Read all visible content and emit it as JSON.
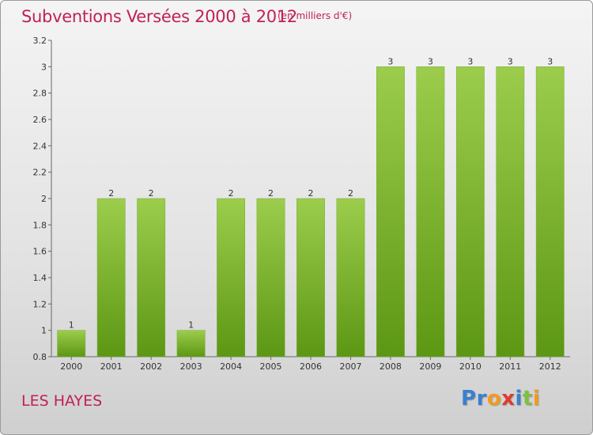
{
  "title": "Subventions Versées 2000 à 2012",
  "subtitle": "(en milliers d'€)",
  "commune": "LES HAYES",
  "logo": {
    "text": "Proxiti",
    "letters": [
      {
        "ch": "P",
        "color": "#3a7fd0"
      },
      {
        "ch": "r",
        "color": "#3a7fd0"
      },
      {
        "ch": "o",
        "color": "#f29a1d"
      },
      {
        "ch": "x",
        "color": "#e03a2f"
      },
      {
        "ch": "i",
        "color": "#3a7fd0"
      },
      {
        "ch": "t",
        "color": "#7cc142"
      },
      {
        "ch": "i",
        "color": "#f29a1d"
      }
    ]
  },
  "colors": {
    "accent": "#c0205a",
    "bar_top": "#9ccd4c",
    "bar_bottom": "#5c9714"
  },
  "chart_data": {
    "type": "bar",
    "categories": [
      "2000",
      "2001",
      "2002",
      "2003",
      "2004",
      "2005",
      "2006",
      "2007",
      "2008",
      "2009",
      "2010",
      "2011",
      "2012"
    ],
    "values": [
      1,
      2,
      2,
      1,
      2,
      2,
      2,
      2,
      3,
      3,
      3,
      3,
      3
    ],
    "data_labels": [
      "1",
      "2",
      "2",
      "1",
      "2",
      "2",
      "2",
      "2",
      "3",
      "3",
      "3",
      "3",
      "3"
    ],
    "ylim": [
      0.8,
      3.2
    ],
    "yticks": [
      0.8,
      1,
      1.2,
      1.4,
      1.6,
      1.8,
      2,
      2.2,
      2.4,
      2.6,
      2.8,
      3,
      3.2
    ],
    "ytick_labels": [
      "0.8",
      "1",
      "1.2",
      "1.4",
      "1.6",
      "1.8",
      "2",
      "2.2",
      "2.4",
      "2.6",
      "2.8",
      "3",
      "3.2"
    ],
    "grid": false,
    "legend": "none"
  }
}
